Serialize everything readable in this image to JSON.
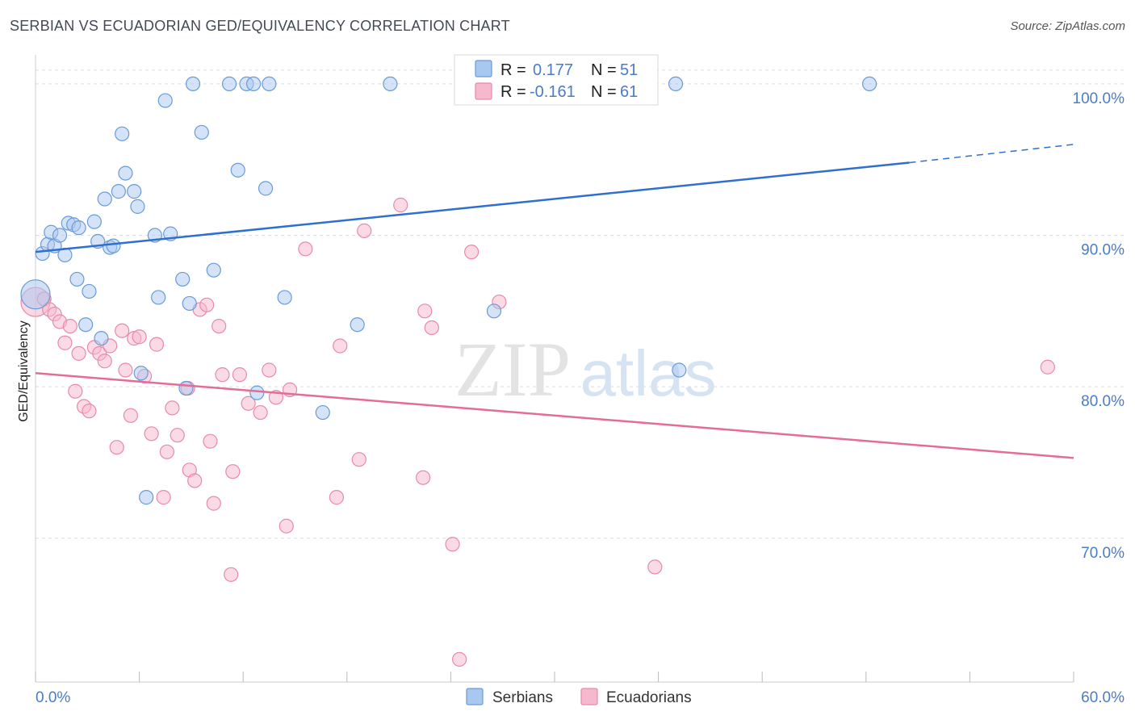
{
  "title": "SERBIAN VS ECUADORIAN GED/EQUIVALENCY CORRELATION CHART",
  "source": "Source: ZipAtlas.com",
  "watermark": {
    "zip": "ZIP",
    "atlas": "atlas"
  },
  "colors": {
    "serbians_fill": "#a9c8ef",
    "serbians_stroke": "#6a9bd8",
    "serbians_line": "#2f6fcf",
    "ecuadorians_fill": "#f5b8cc",
    "ecuadorians_stroke": "#e88aa8",
    "ecuadorians_line": "#e46d98",
    "tick_label": "#4a7cc9",
    "grid": "#dddddd"
  },
  "legend": {
    "r_label": "R =",
    "n_label": "N =",
    "serbians": {
      "r": "0.177",
      "n": "51"
    },
    "ecuadorians": {
      "r": "-0.161",
      "n": "61"
    }
  },
  "bottom_legend": {
    "serbians": "Serbians",
    "ecuadorians": "Ecuadorians"
  },
  "chart_data": {
    "type": "scatter",
    "title": "SERBIAN VS ECUADORIAN GED/EQUIVALENCY CORRELATION CHART",
    "xlabel": "",
    "ylabel": "GED/Equivalency",
    "xlim": [
      0,
      60
    ],
    "ylim": [
      60.5,
      102.5
    ],
    "x_tick_labels": [
      {
        "value": 0,
        "label": "0.0%"
      },
      {
        "value": 60,
        "label": "60.0%"
      }
    ],
    "y_tick_labels": [
      {
        "value": 100,
        "label": "100.0%"
      },
      {
        "value": 90,
        "label": "90.0%"
      },
      {
        "value": 80,
        "label": "80.0%"
      },
      {
        "value": 70,
        "label": "70.0%"
      }
    ],
    "grid": true,
    "series": [
      {
        "name": "Serbians",
        "r": 0.177,
        "n": 51,
        "trend": {
          "x0": 0,
          "y0": 88.9,
          "x1": 50.5,
          "y1": 94.8,
          "dash_to_x": 60,
          "dash_to_y": 96.0
        },
        "points": [
          [
            0.0,
            86.1,
            "big"
          ],
          [
            0.4,
            88.8
          ],
          [
            0.7,
            89.4
          ],
          [
            0.9,
            90.2
          ],
          [
            1.1,
            89.3
          ],
          [
            1.4,
            90.0
          ],
          [
            1.7,
            88.7
          ],
          [
            1.9,
            90.8
          ],
          [
            2.2,
            90.7
          ],
          [
            2.5,
            90.5
          ],
          [
            2.4,
            87.1
          ],
          [
            3.1,
            86.3
          ],
          [
            2.9,
            84.1
          ],
          [
            3.4,
            90.9
          ],
          [
            3.6,
            89.6
          ],
          [
            3.8,
            83.2
          ],
          [
            4.0,
            92.4
          ],
          [
            4.3,
            89.2
          ],
          [
            4.5,
            89.3
          ],
          [
            4.8,
            92.9
          ],
          [
            5.0,
            96.7
          ],
          [
            5.2,
            94.1
          ],
          [
            5.7,
            92.9
          ],
          [
            5.9,
            91.9
          ],
          [
            6.1,
            80.9
          ],
          [
            6.4,
            72.7
          ],
          [
            6.9,
            90.0
          ],
          [
            7.1,
            85.9
          ],
          [
            7.5,
            98.9
          ],
          [
            7.8,
            90.1
          ],
          [
            8.5,
            87.1
          ],
          [
            8.7,
            79.9
          ],
          [
            8.9,
            85.5
          ],
          [
            9.1,
            100.0
          ],
          [
            9.6,
            96.8
          ],
          [
            10.3,
            87.7
          ],
          [
            11.2,
            100.0
          ],
          [
            11.7,
            94.3
          ],
          [
            12.2,
            100.0
          ],
          [
            12.6,
            100.0
          ],
          [
            12.8,
            79.6
          ],
          [
            13.3,
            93.1
          ],
          [
            13.5,
            100.0
          ],
          [
            14.4,
            85.9
          ],
          [
            16.6,
            78.3
          ],
          [
            18.6,
            84.1
          ],
          [
            20.5,
            100.0
          ],
          [
            26.5,
            85.0
          ],
          [
            37.0,
            100.0
          ],
          [
            37.2,
            81.1
          ],
          [
            48.2,
            100.0
          ]
        ]
      },
      {
        "name": "Ecuadorians",
        "r": -0.161,
        "n": 61,
        "trend": {
          "x0": 0,
          "y0": 80.9,
          "x1": 60,
          "y1": 75.3
        },
        "points": [
          [
            0.0,
            85.6,
            "big"
          ],
          [
            0.5,
            85.8
          ],
          [
            0.8,
            85.1
          ],
          [
            1.1,
            84.8
          ],
          [
            1.4,
            84.3
          ],
          [
            1.7,
            82.9
          ],
          [
            2.0,
            84.0
          ],
          [
            2.3,
            79.7
          ],
          [
            2.5,
            82.2
          ],
          [
            2.8,
            78.7
          ],
          [
            3.1,
            78.4
          ],
          [
            3.4,
            82.6
          ],
          [
            3.7,
            82.2
          ],
          [
            4.0,
            81.7
          ],
          [
            4.3,
            82.7
          ],
          [
            4.7,
            76.0
          ],
          [
            5.0,
            83.7
          ],
          [
            5.2,
            81.1
          ],
          [
            5.5,
            78.1
          ],
          [
            5.7,
            83.2
          ],
          [
            6.0,
            83.3
          ],
          [
            6.3,
            80.7
          ],
          [
            6.7,
            76.9
          ],
          [
            7.0,
            82.8
          ],
          [
            7.4,
            72.7
          ],
          [
            7.6,
            75.7
          ],
          [
            7.9,
            78.6
          ],
          [
            8.2,
            76.8
          ],
          [
            8.8,
            79.9
          ],
          [
            8.9,
            74.5
          ],
          [
            9.2,
            73.8
          ],
          [
            9.5,
            85.1
          ],
          [
            9.9,
            85.4
          ],
          [
            10.1,
            76.4
          ],
          [
            10.3,
            72.3
          ],
          [
            10.6,
            84.0
          ],
          [
            10.8,
            80.8
          ],
          [
            11.3,
            67.6
          ],
          [
            11.4,
            74.4
          ],
          [
            11.8,
            80.8
          ],
          [
            12.3,
            78.9
          ],
          [
            13.0,
            78.3
          ],
          [
            13.5,
            81.1
          ],
          [
            13.9,
            79.3
          ],
          [
            14.5,
            70.8
          ],
          [
            14.7,
            79.8
          ],
          [
            15.6,
            89.1
          ],
          [
            17.4,
            72.7
          ],
          [
            17.6,
            82.7
          ],
          [
            18.7,
            75.2
          ],
          [
            19.0,
            90.3
          ],
          [
            21.1,
            92.0
          ],
          [
            22.4,
            74.0
          ],
          [
            22.5,
            85.0
          ],
          [
            22.9,
            83.9
          ],
          [
            24.1,
            69.6
          ],
          [
            24.5,
            62.0
          ],
          [
            25.2,
            88.9
          ],
          [
            26.8,
            85.6
          ],
          [
            35.8,
            68.1
          ],
          [
            58.5,
            81.3
          ]
        ]
      }
    ]
  }
}
